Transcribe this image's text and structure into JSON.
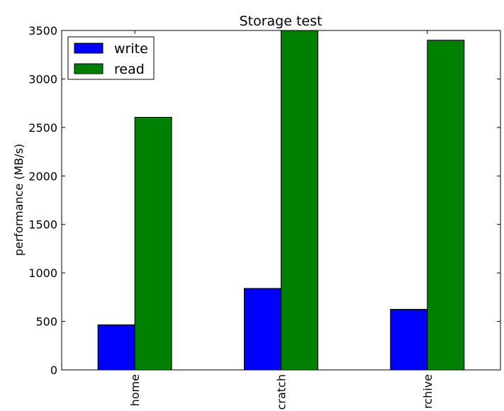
{
  "chart_data": {
    "type": "bar",
    "title": "Storage test",
    "xlabel": "",
    "ylabel": "performance (MB/s)",
    "categories": [
      "home",
      "cratch",
      "rchive"
    ],
    "series": [
      {
        "name": "write",
        "color": "#0000ff",
        "values": [
          465,
          840,
          625
        ]
      },
      {
        "name": "read",
        "color": "#008000",
        "values": [
          2605,
          3500,
          3400
        ]
      }
    ],
    "ylim": [
      0,
      3500
    ],
    "yticks": [
      0,
      500,
      1000,
      1500,
      2000,
      2500,
      3000,
      3500
    ],
    "grid": false,
    "legend_position": "top-left",
    "category_label_rotation": "vertical"
  }
}
